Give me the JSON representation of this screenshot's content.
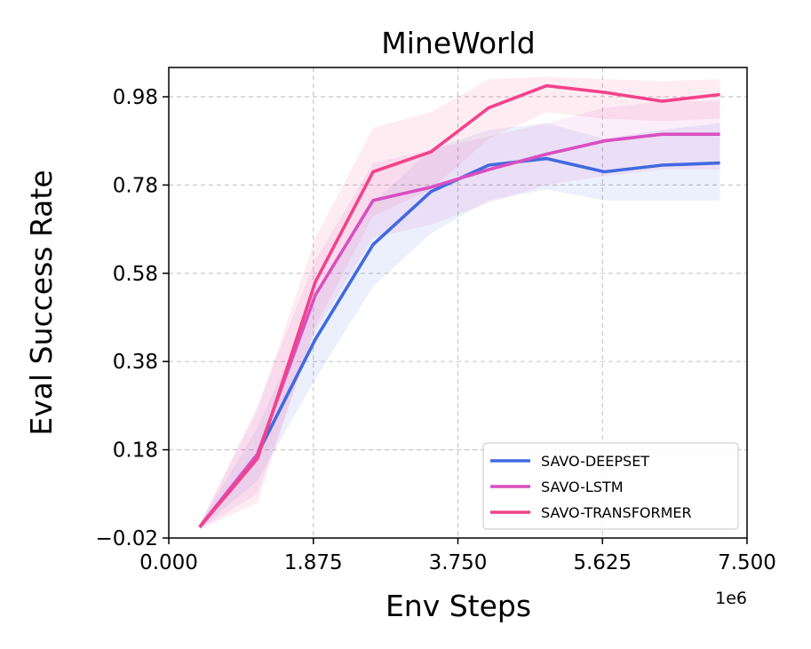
{
  "chart_data": {
    "type": "line",
    "title": "MineWorld",
    "xlabel": "Env Steps",
    "ylabel": "Eval Success Rate",
    "x_offset_label": "1e6",
    "xlim": [
      0,
      7.5
    ],
    "ylim": [
      -0.02,
      1.05
    ],
    "xticks": [
      0,
      1.875,
      3.75,
      5.625,
      7.5
    ],
    "xtick_labels": [
      "0.000",
      "1.875",
      "3.750",
      "5.625",
      "7.500"
    ],
    "yticks": [
      -0.02,
      0.18,
      0.38,
      0.58,
      0.78,
      0.98
    ],
    "ytick_labels": [
      "−0.02",
      "0.18",
      "0.38",
      "0.58",
      "0.78",
      "0.98"
    ],
    "grid": true,
    "legend_position": "lower-right",
    "x": [
      0.4,
      1.15,
      1.9,
      2.65,
      3.4,
      4.15,
      4.9,
      5.65,
      6.4,
      7.15
    ],
    "series": [
      {
        "name": "SAVO-DEEPSET",
        "color": "#4169e1",
        "values": [
          0.005,
          0.17,
          0.43,
          0.645,
          0.765,
          0.825,
          0.84,
          0.81,
          0.825,
          0.83
        ],
        "lower": [
          0.0,
          0.11,
          0.34,
          0.55,
          0.67,
          0.745,
          0.77,
          0.745,
          0.745,
          0.745
        ],
        "upper": [
          0.01,
          0.23,
          0.52,
          0.74,
          0.86,
          0.905,
          0.92,
          0.885,
          0.905,
          0.92
        ]
      },
      {
        "name": "SAVO-LSTM",
        "color": "#d94fc0",
        "values": [
          0.005,
          0.17,
          0.53,
          0.745,
          0.775,
          0.815,
          0.85,
          0.88,
          0.895,
          0.895
        ],
        "lower": [
          0.0,
          0.08,
          0.45,
          0.66,
          0.69,
          0.74,
          0.78,
          0.8,
          0.815,
          0.815
        ],
        "upper": [
          0.01,
          0.28,
          0.61,
          0.83,
          0.86,
          0.89,
          0.92,
          0.955,
          0.97,
          0.97
        ]
      },
      {
        "name": "SAVO-TRANSFORMER",
        "color": "#f2428a",
        "values": [
          0.005,
          0.16,
          0.56,
          0.81,
          0.855,
          0.955,
          1.005,
          0.99,
          0.97,
          0.985
        ],
        "lower": [
          0.0,
          0.06,
          0.46,
          0.71,
          0.77,
          0.885,
          0.945,
          0.93,
          0.925,
          0.93
        ],
        "upper": [
          0.01,
          0.27,
          0.66,
          0.91,
          0.945,
          1.02,
          1.025,
          1.02,
          1.015,
          1.02
        ]
      }
    ]
  }
}
